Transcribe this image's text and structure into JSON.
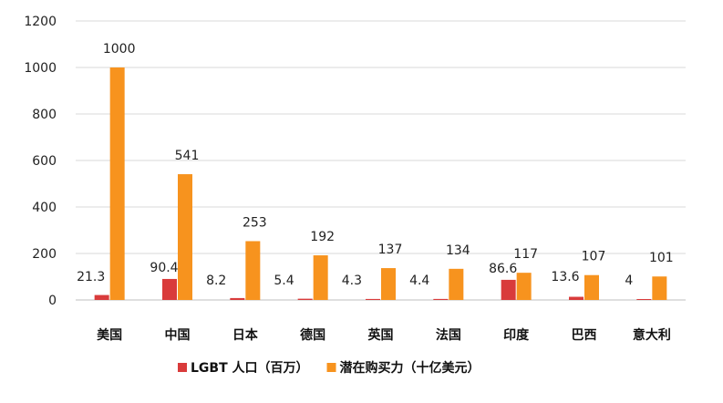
{
  "chart_data": {
    "type": "bar",
    "categories": [
      "美国",
      "中国",
      "日本",
      "德国",
      "英国",
      "法国",
      "印度",
      "巴西",
      "意大利"
    ],
    "series": [
      {
        "name": "LGBT 人口（百万）",
        "color": "#d93b3b",
        "values": [
          21.3,
          90.4,
          8.2,
          5.4,
          4.3,
          4.4,
          86.6,
          13.6,
          4
        ],
        "labels": [
          "21.3",
          "90.4",
          "8.2",
          "5.4",
          "4.3",
          "4.4",
          "86.6",
          "13.6",
          "4"
        ]
      },
      {
        "name": "潜在购买力（十亿美元）",
        "color": "#f7931e",
        "values": [
          1000,
          541,
          253,
          192,
          137,
          134,
          117,
          107,
          101
        ],
        "labels": [
          "1000",
          "541",
          "253",
          "192",
          "137",
          "134",
          "117",
          "107",
          "101"
        ]
      }
    ],
    "yticks": [
      "0",
      "200",
      "400",
      "600",
      "800",
      "1000",
      "1200"
    ],
    "ylim": [
      0,
      1200
    ],
    "grid": true,
    "legend_position": "bottom"
  }
}
